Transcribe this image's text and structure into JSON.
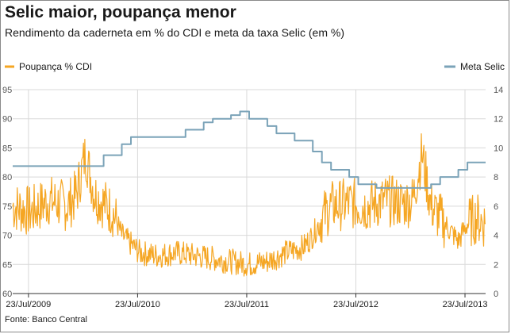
{
  "header": {
    "title": "Selic maior, poupança menor",
    "subtitle": "Rendimento da caderneta em % do CDI e meta da taxa Selic (em %)"
  },
  "footer": {
    "source": "Fonte: Banco Central"
  },
  "colors": {
    "poupanca": "#f5a623",
    "selic": "#7ba3b8",
    "grid": "#d9d9d9",
    "baseline": "#333333"
  },
  "chart_data": {
    "type": "line",
    "grid": true,
    "x_ticks": [
      "23/Jul/2009",
      "23/Jul/2010",
      "23/Jul/2011",
      "23/Jul/2012",
      "23/Jul/2013"
    ],
    "x_range": [
      "2009-06",
      "2013-10"
    ],
    "left_axis": {
      "range": [
        60,
        95
      ],
      "ticks": [
        95,
        90,
        85,
        80,
        75,
        70,
        65,
        60
      ]
    },
    "right_axis": {
      "range": [
        0,
        14
      ],
      "ticks": [
        14,
        12,
        10,
        8,
        6,
        4,
        2,
        0
      ]
    },
    "series": [
      {
        "name": "Poupança  % CDI",
        "axis": "left",
        "legend_position": "top-left",
        "points": [
          [
            "2009-06",
            75
          ],
          [
            "2009-08",
            74
          ],
          [
            "2009-10",
            76
          ],
          [
            "2009-12",
            75
          ],
          [
            "2010-01",
            77
          ],
          [
            "2010-02",
            84
          ],
          [
            "2010-03",
            77
          ],
          [
            "2010-05",
            74
          ],
          [
            "2010-06",
            70
          ],
          [
            "2010-08",
            67
          ],
          [
            "2010-10",
            66.5
          ],
          [
            "2010-12",
            67
          ],
          [
            "2011-02",
            66.5
          ],
          [
            "2011-04",
            66
          ],
          [
            "2011-06",
            65.5
          ],
          [
            "2011-08",
            65
          ],
          [
            "2011-10",
            65.5
          ],
          [
            "2011-12",
            67
          ],
          [
            "2012-02",
            68
          ],
          [
            "2012-03",
            70
          ],
          [
            "2012-04",
            73
          ],
          [
            "2012-05",
            75
          ],
          [
            "2012-07",
            75.5
          ],
          [
            "2012-09",
            75
          ],
          [
            "2012-11",
            76
          ],
          [
            "2013-01",
            75.5
          ],
          [
            "2013-02",
            76
          ],
          [
            "2013-03",
            84
          ],
          [
            "2013-04",
            75
          ],
          [
            "2013-05",
            73
          ],
          [
            "2013-06",
            71
          ],
          [
            "2013-07",
            69
          ],
          [
            "2013-08",
            72
          ],
          [
            "2013-09",
            73
          ],
          [
            "2013-10",
            72
          ]
        ]
      },
      {
        "name": "Meta Selic",
        "axis": "right",
        "legend_position": "top-right",
        "points": [
          [
            "2009-06",
            8.75
          ],
          [
            "2010-04",
            8.75
          ],
          [
            "2010-04",
            9.5
          ],
          [
            "2010-06",
            9.5
          ],
          [
            "2010-06",
            10.25
          ],
          [
            "2010-07",
            10.25
          ],
          [
            "2010-07",
            10.75
          ],
          [
            "2011-01",
            10.75
          ],
          [
            "2011-01",
            11.25
          ],
          [
            "2011-03",
            11.25
          ],
          [
            "2011-03",
            11.75
          ],
          [
            "2011-04",
            11.75
          ],
          [
            "2011-04",
            12
          ],
          [
            "2011-06",
            12
          ],
          [
            "2011-06",
            12.25
          ],
          [
            "2011-07",
            12.25
          ],
          [
            "2011-07",
            12.5
          ],
          [
            "2011-08",
            12.5
          ],
          [
            "2011-08",
            12
          ],
          [
            "2011-10",
            12
          ],
          [
            "2011-10",
            11.5
          ],
          [
            "2011-11",
            11.5
          ],
          [
            "2011-11",
            11
          ],
          [
            "2012-01",
            11
          ],
          [
            "2012-01",
            10.5
          ],
          [
            "2012-03",
            10.5
          ],
          [
            "2012-03",
            9.75
          ],
          [
            "2012-04",
            9.75
          ],
          [
            "2012-04",
            9
          ],
          [
            "2012-05",
            9
          ],
          [
            "2012-05",
            8.5
          ],
          [
            "2012-07",
            8.5
          ],
          [
            "2012-07",
            8
          ],
          [
            "2012-08",
            8
          ],
          [
            "2012-08",
            7.5
          ],
          [
            "2012-10",
            7.5
          ],
          [
            "2012-10",
            7.25
          ],
          [
            "2013-04",
            7.25
          ],
          [
            "2013-04",
            7.5
          ],
          [
            "2013-05",
            7.5
          ],
          [
            "2013-05",
            8
          ],
          [
            "2013-07",
            8
          ],
          [
            "2013-07",
            8.5
          ],
          [
            "2013-08",
            8.5
          ],
          [
            "2013-08",
            9
          ],
          [
            "2013-10",
            9
          ]
        ]
      }
    ]
  }
}
